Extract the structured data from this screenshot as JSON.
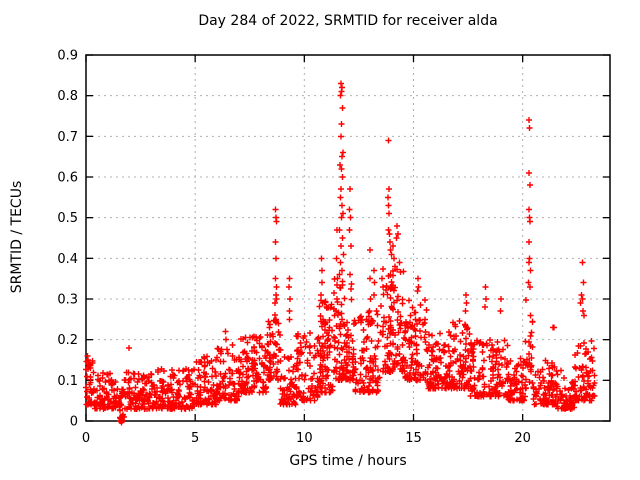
{
  "figure": {
    "title": "Day 284 of 2022, SRMTID for receiver alda",
    "xlabel": "GPS time / hours",
    "ylabel": "SRMTID / TECUs"
  },
  "colors": {
    "marker": "#ff0000",
    "grid": "#b0b0b0",
    "frame": "#000000",
    "background": "#ffffff"
  },
  "chart_data": {
    "type": "scatter",
    "title": "Day 284 of 2022, SRMTID for receiver alda",
    "xlabel": "GPS time / hours",
    "ylabel": "SRMTID / TECUs",
    "xlim": [
      0,
      24
    ],
    "ylim": [
      0,
      0.9
    ],
    "xticks": [
      0,
      5,
      10,
      15,
      20
    ],
    "xtick_labels": [
      "0",
      "5",
      "10",
      "15",
      "20"
    ],
    "yticks": [
      0,
      0.1,
      0.2,
      0.3,
      0.4,
      0.5,
      0.6,
      0.7,
      0.8,
      0.9
    ],
    "ytick_labels": [
      "0",
      "0.1",
      "0.2",
      "0.3",
      "0.4",
      "0.5",
      "0.6",
      "0.7",
      "0.8",
      "0.9"
    ],
    "grid": true,
    "legend": "none",
    "marker": "plus",
    "marker_color": "#ff0000",
    "seed": 42,
    "noise_bands_format": [
      "x_start_hours",
      "x_end_hours",
      "n_points",
      "y_min_TECUs",
      "y_max_TECUs"
    ],
    "noise_bands": [
      [
        0.0,
        0.3,
        30,
        0.04,
        0.16
      ],
      [
        0.3,
        1.5,
        90,
        0.03,
        0.12
      ],
      [
        1.5,
        1.75,
        25,
        0.0,
        0.09
      ],
      [
        1.75,
        3.0,
        100,
        0.03,
        0.12
      ],
      [
        3.0,
        5.0,
        150,
        0.03,
        0.13
      ],
      [
        5.0,
        6.0,
        80,
        0.04,
        0.16
      ],
      [
        6.0,
        7.0,
        80,
        0.05,
        0.19
      ],
      [
        7.0,
        8.3,
        110,
        0.07,
        0.21
      ],
      [
        8.3,
        8.9,
        60,
        0.1,
        0.27
      ],
      [
        8.9,
        9.6,
        50,
        0.04,
        0.16
      ],
      [
        9.6,
        10.6,
        80,
        0.05,
        0.22
      ],
      [
        10.6,
        11.3,
        90,
        0.07,
        0.3
      ],
      [
        11.3,
        12.3,
        110,
        0.1,
        0.35
      ],
      [
        12.3,
        13.5,
        100,
        0.07,
        0.28
      ],
      [
        13.5,
        14.6,
        110,
        0.12,
        0.38
      ],
      [
        14.6,
        15.6,
        90,
        0.1,
        0.3
      ],
      [
        15.6,
        16.8,
        100,
        0.08,
        0.22
      ],
      [
        16.8,
        17.6,
        70,
        0.08,
        0.25
      ],
      [
        17.6,
        19.3,
        130,
        0.06,
        0.2
      ],
      [
        19.3,
        20.1,
        60,
        0.05,
        0.16
      ],
      [
        20.1,
        20.5,
        30,
        0.08,
        0.3
      ],
      [
        20.5,
        21.5,
        80,
        0.04,
        0.15
      ],
      [
        21.5,
        22.4,
        80,
        0.03,
        0.13
      ],
      [
        22.4,
        23.3,
        80,
        0.05,
        0.2
      ]
    ],
    "outlier_points": [
      [
        0.08,
        0.16
      ],
      [
        0.1,
        0.15
      ],
      [
        0.12,
        0.14
      ],
      [
        1.62,
        0.005
      ],
      [
        1.64,
        0.0
      ],
      [
        1.66,
        0.008
      ],
      [
        1.63,
        -0.004
      ],
      [
        1.65,
        0.003
      ],
      [
        1.67,
        0.012
      ],
      [
        1.64,
        0.01
      ],
      [
        1.97,
        0.18
      ],
      [
        6.4,
        0.22
      ],
      [
        6.42,
        0.2
      ],
      [
        8.66,
        0.29
      ],
      [
        8.68,
        0.52
      ],
      [
        8.68,
        0.35
      ],
      [
        8.69,
        0.44
      ],
      [
        8.7,
        0.5
      ],
      [
        8.7,
        0.31
      ],
      [
        8.71,
        0.4
      ],
      [
        8.72,
        0.49
      ],
      [
        8.72,
        0.33
      ],
      [
        8.73,
        0.3
      ],
      [
        9.3,
        0.33
      ],
      [
        9.31,
        0.27
      ],
      [
        9.32,
        0.35
      ],
      [
        9.33,
        0.25
      ],
      [
        9.34,
        0.3
      ],
      [
        10.76,
        0.31
      ],
      [
        10.78,
        0.4
      ],
      [
        10.8,
        0.34
      ],
      [
        10.82,
        0.37
      ],
      [
        10.84,
        0.29
      ],
      [
        11.46,
        0.27
      ],
      [
        11.48,
        0.4
      ],
      [
        11.5,
        0.47
      ],
      [
        11.5,
        0.3
      ],
      [
        11.52,
        0.35
      ],
      [
        11.6,
        0.36
      ],
      [
        11.62,
        0.47
      ],
      [
        11.64,
        0.63
      ],
      [
        11.66,
        0.8
      ],
      [
        11.66,
        0.55
      ],
      [
        11.66,
        0.39
      ],
      [
        11.68,
        0.83
      ],
      [
        11.68,
        0.7
      ],
      [
        11.68,
        0.57
      ],
      [
        11.68,
        0.43
      ],
      [
        11.7,
        0.81
      ],
      [
        11.7,
        0.73
      ],
      [
        11.7,
        0.62
      ],
      [
        11.7,
        0.5
      ],
      [
        11.72,
        0.82
      ],
      [
        11.72,
        0.65
      ],
      [
        11.72,
        0.53
      ],
      [
        11.73,
        0.37
      ],
      [
        11.74,
        0.77
      ],
      [
        11.74,
        0.6
      ],
      [
        11.75,
        0.45
      ],
      [
        11.76,
        0.66
      ],
      [
        11.78,
        0.51
      ],
      [
        11.8,
        0.41
      ],
      [
        12.06,
        0.47
      ],
      [
        12.08,
        0.52
      ],
      [
        12.1,
        0.57
      ],
      [
        12.1,
        0.36
      ],
      [
        12.12,
        0.5
      ],
      [
        12.14,
        0.43
      ],
      [
        12.98,
        0.27
      ],
      [
        13.0,
        0.42
      ],
      [
        13.0,
        0.35
      ],
      [
        13.02,
        0.3
      ],
      [
        13.18,
        0.37
      ],
      [
        13.2,
        0.31
      ],
      [
        13.22,
        0.34
      ],
      [
        13.84,
        0.55
      ],
      [
        13.85,
        0.69
      ],
      [
        13.85,
        0.47
      ],
      [
        13.86,
        0.53
      ],
      [
        13.87,
        0.57
      ],
      [
        13.88,
        0.51
      ],
      [
        13.9,
        0.46
      ],
      [
        13.92,
        0.44
      ],
      [
        13.95,
        0.42
      ],
      [
        14.0,
        0.41
      ],
      [
        14.05,
        0.43
      ],
      [
        14.1,
        0.4
      ],
      [
        14.15,
        0.38
      ],
      [
        14.22,
        0.45
      ],
      [
        14.25,
        0.48
      ],
      [
        14.28,
        0.46
      ],
      [
        14.35,
        0.39
      ],
      [
        15.18,
        0.32
      ],
      [
        15.2,
        0.35
      ],
      [
        15.22,
        0.33
      ],
      [
        17.38,
        0.27
      ],
      [
        17.4,
        0.31
      ],
      [
        17.42,
        0.29
      ],
      [
        18.28,
        0.28
      ],
      [
        18.3,
        0.33
      ],
      [
        18.32,
        0.3
      ],
      [
        18.98,
        0.27
      ],
      [
        19.0,
        0.3
      ],
      [
        20.27,
        0.34
      ],
      [
        20.28,
        0.74
      ],
      [
        20.28,
        0.44
      ],
      [
        20.29,
        0.52
      ],
      [
        20.3,
        0.61
      ],
      [
        20.3,
        0.39
      ],
      [
        20.31,
        0.5
      ],
      [
        20.32,
        0.72
      ],
      [
        20.32,
        0.4
      ],
      [
        20.33,
        0.58
      ],
      [
        20.33,
        0.33
      ],
      [
        20.34,
        0.49
      ],
      [
        20.35,
        0.37
      ],
      [
        21.4,
        0.23
      ],
      [
        21.44,
        0.23
      ],
      [
        22.65,
        0.29
      ],
      [
        22.7,
        0.31
      ],
      [
        22.73,
        0.3
      ],
      [
        22.75,
        0.39
      ],
      [
        22.76,
        0.27
      ],
      [
        22.78,
        0.34
      ],
      [
        22.8,
        0.26
      ]
    ]
  }
}
